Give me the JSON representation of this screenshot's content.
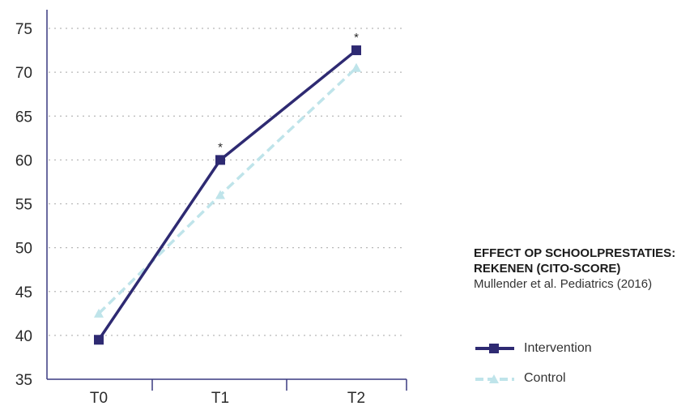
{
  "chart_data": {
    "type": "line",
    "categories": [
      "T0",
      "T1",
      "T2"
    ],
    "series": [
      {
        "name": "Intervention",
        "values": [
          39.5,
          60.0,
          72.5
        ],
        "color": "#2e2a72",
        "style": "solid",
        "marker": "square",
        "annotations": [
          "",
          "*",
          "*"
        ]
      },
      {
        "name": "Control",
        "values": [
          42.5,
          56.0,
          70.5
        ],
        "color": "#bfe4ea",
        "style": "dashed",
        "marker": "triangle"
      }
    ],
    "y_ticks": [
      "75",
      "70",
      "65",
      "60",
      "55",
      "50",
      "45",
      "40",
      "35"
    ],
    "ylim": [
      35,
      75
    ],
    "grid": true,
    "legend_position": "bottom-right"
  },
  "panel": {
    "title_line1": "EFFECT OP SCHOOLPRESTATIES:",
    "title_line2": "REKENEN (CITO-SCORE)",
    "source": "Mullender et al. Pediatrics (2016)"
  }
}
